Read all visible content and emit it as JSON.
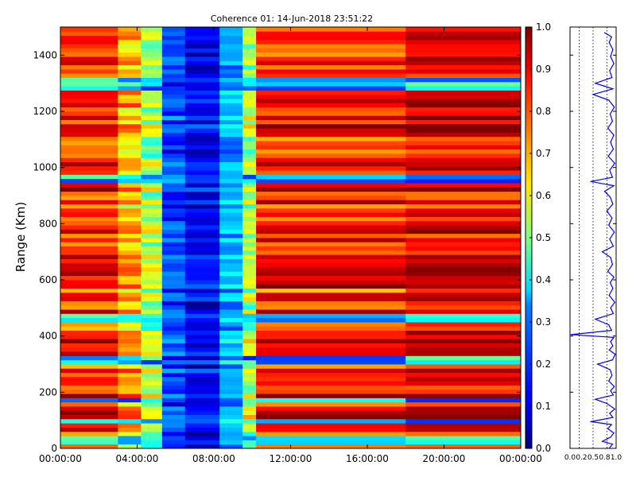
{
  "chart_data": [
    {
      "type": "heatmap",
      "title": "Coherence 01: 14-Jun-2018 23:51:22",
      "xlabel": "",
      "ylabel": "Range (Km)",
      "x_tick_labels": [
        "00:00:00",
        "04:00:00",
        "08:00:00",
        "12:00:00",
        "16:00:00",
        "20:00:00",
        "00:00:00"
      ],
      "x_range_hours": [
        0,
        24
      ],
      "y_ticks": [
        0,
        200,
        400,
        600,
        800,
        1000,
        1200,
        1400
      ],
      "ylim": [
        0,
        1500
      ],
      "colormap": "jet",
      "colorbar": {
        "ticks": [
          "0.0",
          "0.1",
          "0.2",
          "0.3",
          "0.4",
          "0.5",
          "0.6",
          "0.7",
          "0.8",
          "0.9",
          "1.0"
        ],
        "range": [
          0.0,
          1.0
        ]
      },
      "segments": [
        {
          "from_hour": 0.0,
          "to_hour": 3.0,
          "value": 0.85
        },
        {
          "from_hour": 3.0,
          "to_hour": 4.2,
          "value": 0.7
        },
        {
          "from_hour": 4.2,
          "to_hour": 5.3,
          "value": 0.55
        },
        {
          "from_hour": 5.3,
          "to_hour": 6.5,
          "value": 0.2
        },
        {
          "from_hour": 6.5,
          "to_hour": 8.3,
          "value": 0.12
        },
        {
          "from_hour": 8.3,
          "to_hour": 9.5,
          "value": 0.3
        },
        {
          "from_hour": 9.5,
          "to_hour": 10.2,
          "value": 0.55
        },
        {
          "from_hour": 10.2,
          "to_hour": 18.0,
          "value": 0.85
        },
        {
          "from_hour": 18.0,
          "to_hour": 24.0,
          "value": 0.9
        }
      ],
      "low_coherence_ranges_km": [
        25,
        90,
        165,
        305,
        460,
        950,
        1280,
        1300
      ],
      "range_step_km": 15
    },
    {
      "type": "line",
      "title": "",
      "xlabel": "",
      "ylabel": "",
      "x_tick_labels": [
        "0.0",
        "0.2",
        "0.5",
        "0.8",
        "1.0"
      ],
      "xlim": [
        0.0,
        1.0
      ],
      "ylim": [
        0,
        1500
      ],
      "y_ticks": [
        0,
        200,
        400,
        600,
        800,
        1000,
        1200,
        1400
      ],
      "grid_lines_x": [
        0.2,
        0.5,
        0.8
      ],
      "line_color": "#0000ff",
      "points": [
        {
          "range": 0,
          "value": 0.85
        },
        {
          "range": 15,
          "value": 0.92
        },
        {
          "range": 25,
          "value": 0.7
        },
        {
          "range": 40,
          "value": 0.88
        },
        {
          "range": 55,
          "value": 0.95
        },
        {
          "range": 70,
          "value": 0.82
        },
        {
          "range": 85,
          "value": 0.9
        },
        {
          "range": 95,
          "value": 0.45
        },
        {
          "range": 110,
          "value": 0.93
        },
        {
          "range": 125,
          "value": 0.86
        },
        {
          "range": 140,
          "value": 0.97
        },
        {
          "range": 160,
          "value": 0.8
        },
        {
          "range": 175,
          "value": 0.55
        },
        {
          "range": 190,
          "value": 0.94
        },
        {
          "range": 205,
          "value": 0.88
        },
        {
          "range": 220,
          "value": 0.96
        },
        {
          "range": 240,
          "value": 0.84
        },
        {
          "range": 260,
          "value": 0.91
        },
        {
          "range": 280,
          "value": 0.87
        },
        {
          "range": 300,
          "value": 0.6
        },
        {
          "range": 315,
          "value": 0.92
        },
        {
          "range": 335,
          "value": 0.98
        },
        {
          "range": 350,
          "value": 0.85
        },
        {
          "range": 365,
          "value": 0.93
        },
        {
          "range": 380,
          "value": 0.88
        },
        {
          "range": 395,
          "value": 0.95
        },
        {
          "range": 405,
          "value": 0.02
        },
        {
          "range": 420,
          "value": 0.9
        },
        {
          "range": 440,
          "value": 0.84
        },
        {
          "range": 460,
          "value": 0.55
        },
        {
          "range": 480,
          "value": 0.94
        },
        {
          "range": 500,
          "value": 0.88
        },
        {
          "range": 520,
          "value": 0.97
        },
        {
          "range": 545,
          "value": 0.85
        },
        {
          "range": 570,
          "value": 0.93
        },
        {
          "range": 590,
          "value": 0.87
        },
        {
          "range": 610,
          "value": 0.95
        },
        {
          "range": 630,
          "value": 0.82
        },
        {
          "range": 655,
          "value": 0.92
        },
        {
          "range": 680,
          "value": 0.88
        },
        {
          "range": 700,
          "value": 0.7
        },
        {
          "range": 720,
          "value": 0.94
        },
        {
          "range": 745,
          "value": 0.86
        },
        {
          "range": 770,
          "value": 0.96
        },
        {
          "range": 795,
          "value": 0.84
        },
        {
          "range": 820,
          "value": 0.91
        },
        {
          "range": 845,
          "value": 0.8
        },
        {
          "range": 870,
          "value": 0.93
        },
        {
          "range": 895,
          "value": 0.87
        },
        {
          "range": 915,
          "value": 0.75
        },
        {
          "range": 935,
          "value": 0.95
        },
        {
          "range": 950,
          "value": 0.45
        },
        {
          "range": 965,
          "value": 0.92
        },
        {
          "range": 990,
          "value": 0.86
        },
        {
          "range": 1015,
          "value": 0.97
        },
        {
          "range": 1040,
          "value": 0.83
        },
        {
          "range": 1065,
          "value": 0.94
        },
        {
          "range": 1090,
          "value": 0.88
        },
        {
          "range": 1115,
          "value": 0.95
        },
        {
          "range": 1140,
          "value": 0.82
        },
        {
          "range": 1165,
          "value": 0.92
        },
        {
          "range": 1190,
          "value": 0.87
        },
        {
          "range": 1215,
          "value": 0.96
        },
        {
          "range": 1240,
          "value": 0.84
        },
        {
          "range": 1260,
          "value": 0.5
        },
        {
          "range": 1280,
          "value": 0.93
        },
        {
          "range": 1300,
          "value": 0.55
        },
        {
          "range": 1320,
          "value": 0.91
        },
        {
          "range": 1345,
          "value": 0.86
        },
        {
          "range": 1370,
          "value": 0.95
        },
        {
          "range": 1395,
          "value": 0.88
        },
        {
          "range": 1420,
          "value": 0.93
        },
        {
          "range": 1445,
          "value": 0.85
        },
        {
          "range": 1465,
          "value": 0.9
        },
        {
          "range": 1480,
          "value": 0.75
        }
      ]
    }
  ]
}
